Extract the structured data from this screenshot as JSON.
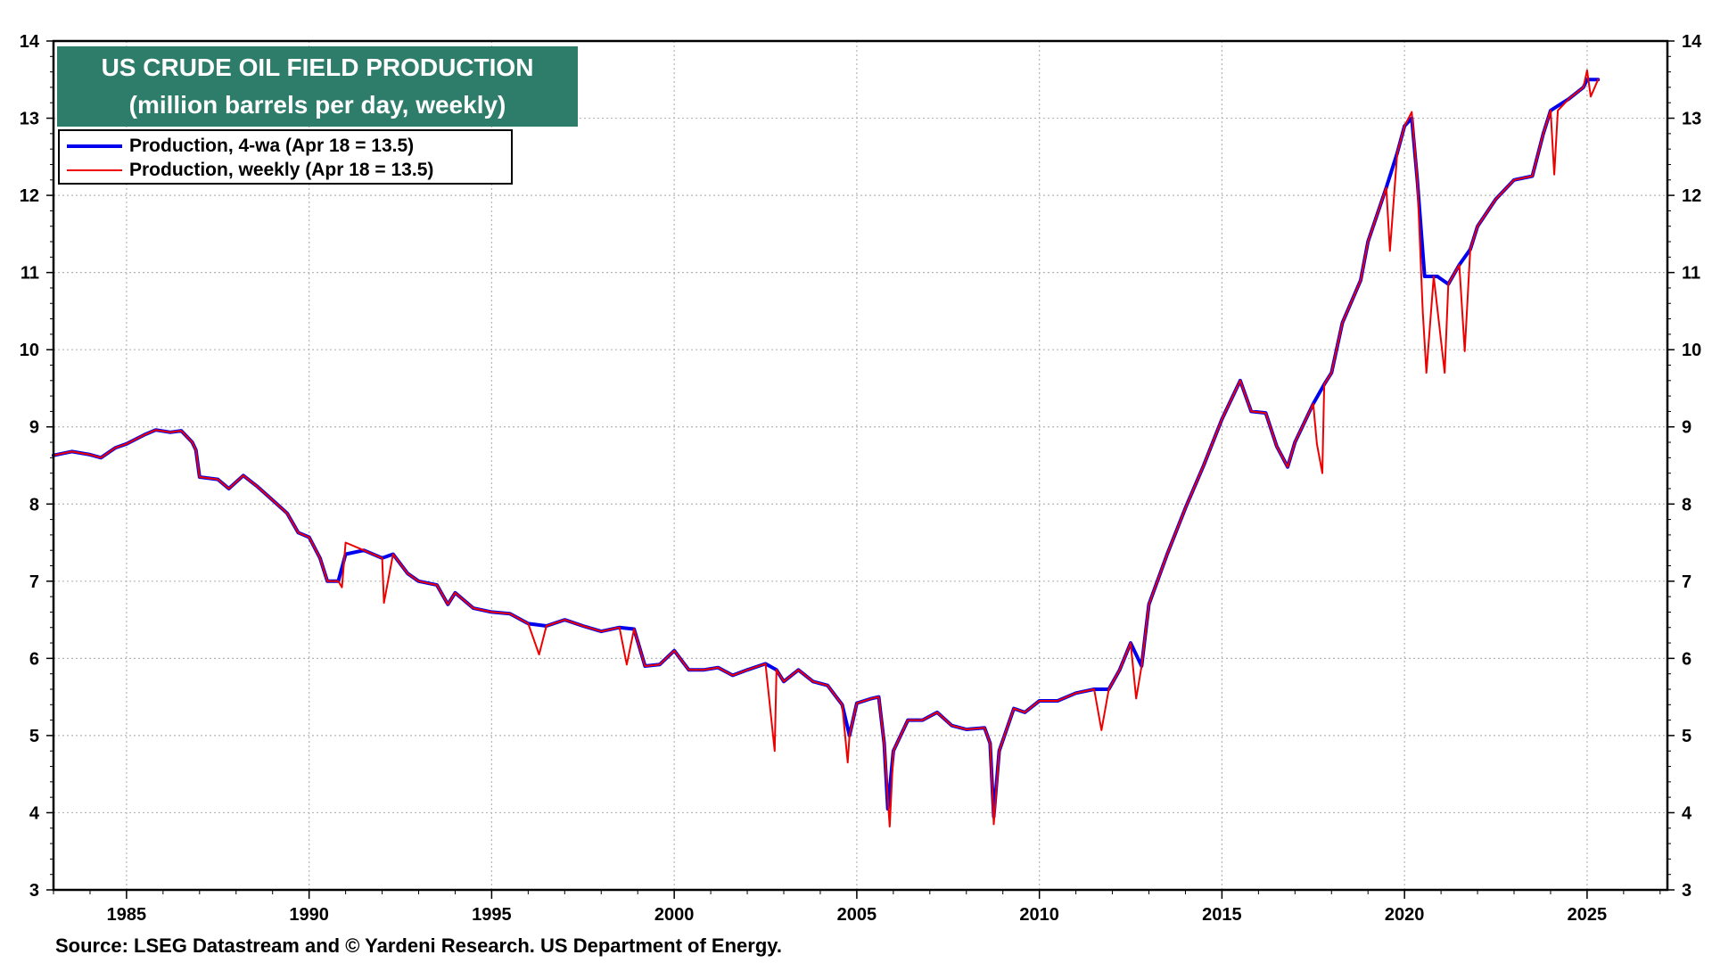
{
  "title_box": {
    "line1": "US CRUDE OIL FIELD PRODUCTION",
    "line2": "(million barrels per day, weekly)",
    "background": "#2e7d6b"
  },
  "legend": {
    "items": [
      {
        "label": "Production, 4-wa (Apr 18 = 13.5)",
        "color": "#0000ee"
      },
      {
        "label": "Production, weekly (Apr 18 = 13.5)",
        "color": "#ee0000"
      }
    ]
  },
  "source": "Source: LSEG Datastream and © Yardeni Research. US Department of Energy.",
  "chart_data": {
    "type": "line",
    "title": "US CRUDE OIL FIELD PRODUCTION",
    "subtitle": "(million barrels per day, weekly)",
    "xlabel": "",
    "ylabel": "",
    "xlim": [
      1983.0,
      2027.2
    ],
    "ylim": [
      3,
      14
    ],
    "x_ticks": [
      1985,
      1990,
      1995,
      2000,
      2005,
      2010,
      2015,
      2020,
      2025
    ],
    "y_ticks": [
      3,
      4,
      5,
      6,
      7,
      8,
      9,
      10,
      11,
      12,
      13,
      14
    ],
    "y_axis_sides": [
      "left",
      "right"
    ],
    "grid": true,
    "legend_position": "top-left",
    "series": [
      {
        "name": "Production, 4-wa (Apr 18 = 13.5)",
        "color": "#0000ee",
        "points": [
          [
            1983.0,
            8.63
          ],
          [
            1983.5,
            8.68
          ],
          [
            1984.0,
            8.64
          ],
          [
            1984.3,
            8.6
          ],
          [
            1984.7,
            8.73
          ],
          [
            1985.0,
            8.78
          ],
          [
            1985.5,
            8.9
          ],
          [
            1985.8,
            8.96
          ],
          [
            1986.2,
            8.93
          ],
          [
            1986.5,
            8.95
          ],
          [
            1986.8,
            8.8
          ],
          [
            1986.9,
            8.7
          ],
          [
            1987.0,
            8.35
          ],
          [
            1987.5,
            8.32
          ],
          [
            1987.8,
            8.2
          ],
          [
            1988.2,
            8.37
          ],
          [
            1988.6,
            8.22
          ],
          [
            1989.0,
            8.05
          ],
          [
            1989.4,
            7.88
          ],
          [
            1989.7,
            7.63
          ],
          [
            1990.0,
            7.57
          ],
          [
            1990.3,
            7.3
          ],
          [
            1990.5,
            7.0
          ],
          [
            1990.8,
            7.0
          ],
          [
            1991.0,
            7.35
          ],
          [
            1991.5,
            7.4
          ],
          [
            1992.0,
            7.3
          ],
          [
            1992.3,
            7.35
          ],
          [
            1992.7,
            7.1
          ],
          [
            1993.0,
            7.0
          ],
          [
            1993.5,
            6.95
          ],
          [
            1993.8,
            6.7
          ],
          [
            1994.0,
            6.85
          ],
          [
            1994.5,
            6.65
          ],
          [
            1995.0,
            6.6
          ],
          [
            1995.5,
            6.58
          ],
          [
            1996.0,
            6.45
          ],
          [
            1996.5,
            6.42
          ],
          [
            1997.0,
            6.5
          ],
          [
            1997.5,
            6.42
          ],
          [
            1998.0,
            6.35
          ],
          [
            1998.5,
            6.4
          ],
          [
            1998.9,
            6.38
          ],
          [
            1999.2,
            5.9
          ],
          [
            1999.6,
            5.92
          ],
          [
            2000.0,
            6.1
          ],
          [
            2000.4,
            5.85
          ],
          [
            2000.8,
            5.85
          ],
          [
            2001.2,
            5.88
          ],
          [
            2001.6,
            5.78
          ],
          [
            2002.0,
            5.85
          ],
          [
            2002.5,
            5.93
          ],
          [
            2002.8,
            5.85
          ],
          [
            2003.0,
            5.7
          ],
          [
            2003.4,
            5.85
          ],
          [
            2003.8,
            5.7
          ],
          [
            2004.2,
            5.65
          ],
          [
            2004.6,
            5.4
          ],
          [
            2004.8,
            5.0
          ],
          [
            2005.0,
            5.42
          ],
          [
            2005.4,
            5.48
          ],
          [
            2005.6,
            5.5
          ],
          [
            2005.75,
            4.9
          ],
          [
            2005.85,
            4.05
          ],
          [
            2006.0,
            4.8
          ],
          [
            2006.4,
            5.2
          ],
          [
            2006.8,
            5.2
          ],
          [
            2007.2,
            5.3
          ],
          [
            2007.6,
            5.13
          ],
          [
            2008.0,
            5.08
          ],
          [
            2008.5,
            5.1
          ],
          [
            2008.65,
            4.9
          ],
          [
            2008.75,
            3.95
          ],
          [
            2008.9,
            4.8
          ],
          [
            2009.3,
            5.35
          ],
          [
            2009.6,
            5.3
          ],
          [
            2010.0,
            5.45
          ],
          [
            2010.5,
            5.45
          ],
          [
            2011.0,
            5.55
          ],
          [
            2011.5,
            5.6
          ],
          [
            2011.9,
            5.6
          ],
          [
            2012.2,
            5.85
          ],
          [
            2012.5,
            6.2
          ],
          [
            2012.8,
            5.9
          ],
          [
            2013.0,
            6.7
          ],
          [
            2013.5,
            7.35
          ],
          [
            2014.0,
            7.95
          ],
          [
            2014.5,
            8.5
          ],
          [
            2015.0,
            9.1
          ],
          [
            2015.3,
            9.4
          ],
          [
            2015.5,
            9.6
          ],
          [
            2015.8,
            9.2
          ],
          [
            2016.2,
            9.18
          ],
          [
            2016.5,
            8.75
          ],
          [
            2016.8,
            8.48
          ],
          [
            2017.0,
            8.8
          ],
          [
            2017.5,
            9.3
          ],
          [
            2017.8,
            9.55
          ],
          [
            2018.0,
            9.7
          ],
          [
            2018.3,
            10.35
          ],
          [
            2018.8,
            10.9
          ],
          [
            2019.0,
            11.4
          ],
          [
            2019.5,
            12.1
          ],
          [
            2019.8,
            12.55
          ],
          [
            2020.0,
            12.9
          ],
          [
            2020.2,
            13.0
          ],
          [
            2020.35,
            12.2
          ],
          [
            2020.55,
            10.95
          ],
          [
            2020.9,
            10.95
          ],
          [
            2021.2,
            10.85
          ],
          [
            2021.5,
            11.1
          ],
          [
            2021.8,
            11.3
          ],
          [
            2022.0,
            11.6
          ],
          [
            2022.5,
            11.95
          ],
          [
            2023.0,
            12.2
          ],
          [
            2023.5,
            12.25
          ],
          [
            2023.8,
            12.8
          ],
          [
            2024.0,
            13.1
          ],
          [
            2024.5,
            13.25
          ],
          [
            2024.9,
            13.4
          ],
          [
            2025.0,
            13.5
          ],
          [
            2025.3,
            13.5
          ]
        ]
      },
      {
        "name": "Production, weekly (Apr 18 = 13.5)",
        "color": "#ee0000",
        "points": [
          [
            1983.0,
            8.63
          ],
          [
            1983.5,
            8.68
          ],
          [
            1984.0,
            8.64
          ],
          [
            1984.3,
            8.6
          ],
          [
            1984.7,
            8.73
          ],
          [
            1985.0,
            8.78
          ],
          [
            1985.5,
            8.9
          ],
          [
            1985.8,
            8.96
          ],
          [
            1986.2,
            8.93
          ],
          [
            1986.5,
            8.95
          ],
          [
            1986.8,
            8.8
          ],
          [
            1986.9,
            8.7
          ],
          [
            1987.0,
            8.35
          ],
          [
            1987.5,
            8.32
          ],
          [
            1987.8,
            8.2
          ],
          [
            1988.2,
            8.37
          ],
          [
            1988.6,
            8.22
          ],
          [
            1989.0,
            8.05
          ],
          [
            1989.4,
            7.88
          ],
          [
            1989.7,
            7.63
          ],
          [
            1990.0,
            7.57
          ],
          [
            1990.3,
            7.3
          ],
          [
            1990.5,
            7.0
          ],
          [
            1990.8,
            7.0
          ],
          [
            1990.9,
            6.92
          ],
          [
            1991.0,
            7.5
          ],
          [
            1991.5,
            7.4
          ],
          [
            1992.0,
            7.3
          ],
          [
            1992.05,
            6.72
          ],
          [
            1992.3,
            7.35
          ],
          [
            1992.7,
            7.1
          ],
          [
            1993.0,
            7.0
          ],
          [
            1993.5,
            6.95
          ],
          [
            1993.8,
            6.7
          ],
          [
            1994.0,
            6.85
          ],
          [
            1994.5,
            6.65
          ],
          [
            1995.0,
            6.6
          ],
          [
            1995.5,
            6.58
          ],
          [
            1996.0,
            6.45
          ],
          [
            1996.3,
            6.05
          ],
          [
            1996.5,
            6.42
          ],
          [
            1997.0,
            6.5
          ],
          [
            1997.5,
            6.42
          ],
          [
            1998.0,
            6.35
          ],
          [
            1998.5,
            6.4
          ],
          [
            1998.7,
            5.92
          ],
          [
            1998.9,
            6.38
          ],
          [
            1999.2,
            5.9
          ],
          [
            1999.6,
            5.92
          ],
          [
            2000.0,
            6.1
          ],
          [
            2000.4,
            5.85
          ],
          [
            2000.8,
            5.85
          ],
          [
            2001.2,
            5.88
          ],
          [
            2001.6,
            5.78
          ],
          [
            2002.0,
            5.85
          ],
          [
            2002.5,
            5.93
          ],
          [
            2002.75,
            4.8
          ],
          [
            2002.8,
            5.85
          ],
          [
            2003.0,
            5.7
          ],
          [
            2003.4,
            5.85
          ],
          [
            2003.8,
            5.7
          ],
          [
            2004.2,
            5.65
          ],
          [
            2004.6,
            5.4
          ],
          [
            2004.75,
            4.65
          ],
          [
            2004.8,
            5.0
          ],
          [
            2005.0,
            5.42
          ],
          [
            2005.4,
            5.48
          ],
          [
            2005.6,
            5.5
          ],
          [
            2005.75,
            4.9
          ],
          [
            2005.9,
            3.82
          ],
          [
            2006.0,
            4.8
          ],
          [
            2006.4,
            5.2
          ],
          [
            2006.8,
            5.2
          ],
          [
            2007.2,
            5.3
          ],
          [
            2007.6,
            5.13
          ],
          [
            2008.0,
            5.08
          ],
          [
            2008.5,
            5.1
          ],
          [
            2008.65,
            4.9
          ],
          [
            2008.75,
            3.85
          ],
          [
            2008.9,
            4.8
          ],
          [
            2009.3,
            5.35
          ],
          [
            2009.6,
            5.3
          ],
          [
            2010.0,
            5.45
          ],
          [
            2010.5,
            5.45
          ],
          [
            2011.0,
            5.55
          ],
          [
            2011.5,
            5.6
          ],
          [
            2011.7,
            5.07
          ],
          [
            2011.9,
            5.6
          ],
          [
            2012.2,
            5.85
          ],
          [
            2012.5,
            6.2
          ],
          [
            2012.65,
            5.48
          ],
          [
            2012.8,
            5.9
          ],
          [
            2013.0,
            6.7
          ],
          [
            2013.5,
            7.35
          ],
          [
            2014.0,
            7.95
          ],
          [
            2014.5,
            8.5
          ],
          [
            2015.0,
            9.1
          ],
          [
            2015.3,
            9.4
          ],
          [
            2015.5,
            9.6
          ],
          [
            2015.8,
            9.2
          ],
          [
            2016.2,
            9.18
          ],
          [
            2016.5,
            8.75
          ],
          [
            2016.8,
            8.48
          ],
          [
            2017.0,
            8.8
          ],
          [
            2017.5,
            9.3
          ],
          [
            2017.6,
            8.78
          ],
          [
            2017.75,
            8.4
          ],
          [
            2017.8,
            9.55
          ],
          [
            2018.0,
            9.7
          ],
          [
            2018.3,
            10.35
          ],
          [
            2018.8,
            10.9
          ],
          [
            2019.0,
            11.4
          ],
          [
            2019.5,
            12.1
          ],
          [
            2019.6,
            11.28
          ],
          [
            2019.8,
            12.55
          ],
          [
            2020.0,
            12.9
          ],
          [
            2020.2,
            13.08
          ],
          [
            2020.35,
            12.2
          ],
          [
            2020.5,
            10.5
          ],
          [
            2020.6,
            9.7
          ],
          [
            2020.8,
            10.95
          ],
          [
            2021.1,
            9.7
          ],
          [
            2021.2,
            10.85
          ],
          [
            2021.5,
            11.1
          ],
          [
            2021.65,
            9.98
          ],
          [
            2021.8,
            11.3
          ],
          [
            2022.0,
            11.6
          ],
          [
            2022.5,
            11.95
          ],
          [
            2023.0,
            12.2
          ],
          [
            2023.5,
            12.25
          ],
          [
            2023.8,
            12.8
          ],
          [
            2024.0,
            13.1
          ],
          [
            2024.1,
            12.27
          ],
          [
            2024.2,
            13.1
          ],
          [
            2024.5,
            13.25
          ],
          [
            2024.9,
            13.4
          ],
          [
            2025.0,
            13.62
          ],
          [
            2025.1,
            13.28
          ],
          [
            2025.3,
            13.5
          ]
        ]
      }
    ]
  }
}
